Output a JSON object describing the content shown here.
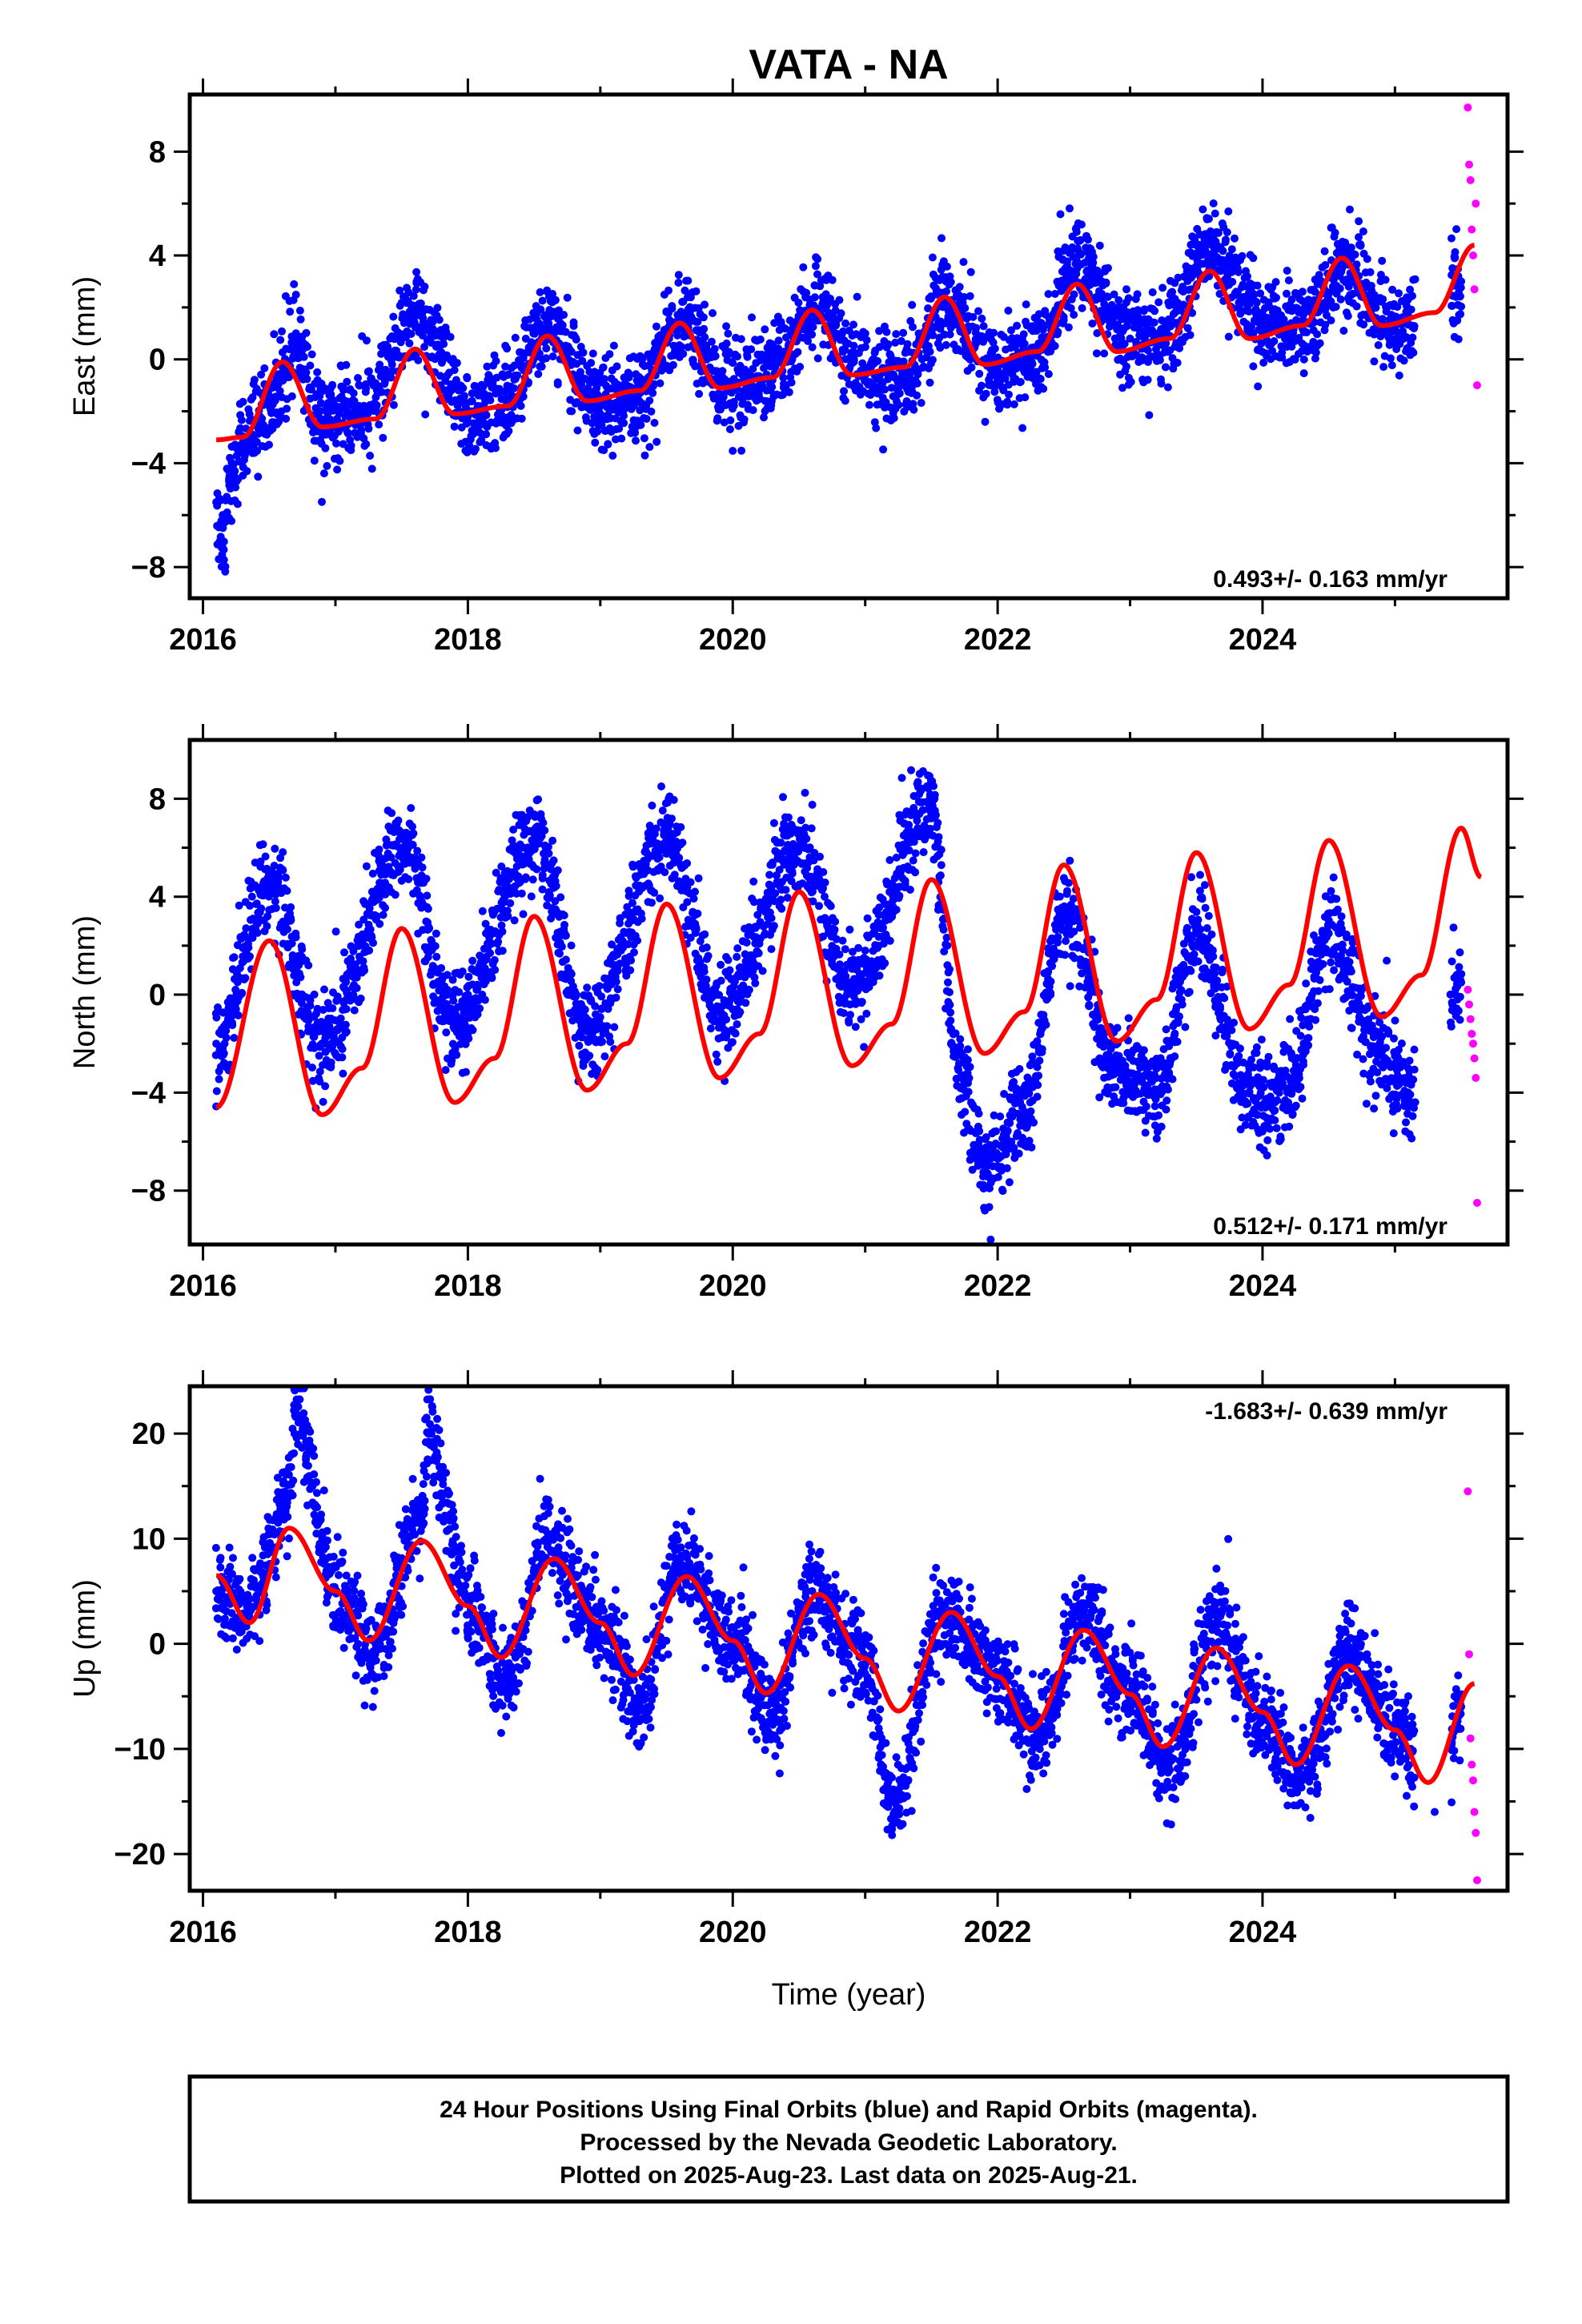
{
  "title": "VATA - NA",
  "xlabel": "Time (year)",
  "footer": {
    "line1": "24 Hour Positions Using Final Orbits (blue) and Rapid Orbits (magenta).",
    "line2": "Processed by the Nevada Geodetic Laboratory.",
    "line3": "Plotted on 2025-Aug-23. Last data on 2025-Aug-21."
  },
  "colors": {
    "final": "#0000ff",
    "rapid": "#ff00ff",
    "model": "#ff0000",
    "axis": "#000000"
  },
  "chart_data": [
    {
      "type": "scatter",
      "component": "east",
      "ylabel": "East (mm)",
      "rate": "0.493+/- 0.163 mm/yr",
      "xlim": [
        2015.9,
        2025.85
      ],
      "ylim": [
        -9.2,
        10.2
      ],
      "xticks": [
        2016,
        2018,
        2020,
        2022,
        2024
      ],
      "yticks": [
        -8,
        -4,
        0,
        4,
        8
      ],
      "x_tick_labels": [
        "2016",
        "2018",
        "2020",
        "2022",
        "2024"
      ],
      "y_tick_labels": [
        "−8",
        "−4",
        "0",
        "4",
        "8"
      ],
      "model_series": {
        "name": "",
        "x": [
          2016.1,
          2016.3,
          2016.6,
          2016.9,
          2017.3,
          2017.6,
          2017.9,
          2018.3,
          2018.6,
          2018.9,
          2019.3,
          2019.6,
          2019.9,
          2020.3,
          2020.6,
          2020.9,
          2021.3,
          2021.6,
          2021.9,
          2022.3,
          2022.6,
          2022.9,
          2023.3,
          2023.6,
          2023.9,
          2024.3,
          2024.6,
          2024.9,
          2025.3,
          2025.6
        ],
        "y": [
          -3.1,
          -3.0,
          -0.1,
          -2.6,
          -2.3,
          0.4,
          -2.1,
          -1.8,
          0.9,
          -1.6,
          -1.2,
          1.4,
          -1.1,
          -0.7,
          1.9,
          -0.6,
          -0.3,
          2.4,
          -0.2,
          0.3,
          2.9,
          0.3,
          0.8,
          3.4,
          0.8,
          1.3,
          3.9,
          1.3,
          1.8,
          4.4
        ]
      },
      "final_orbit_points": {
        "x": [
          2016.1,
          2016.15,
          2016.2,
          2016.3,
          2016.5,
          2016.7,
          2016.9,
          2017.2,
          2017.6,
          2018.0,
          2018.3,
          2018.6,
          2019.0,
          2019.3,
          2019.6,
          2020.0,
          2020.3,
          2020.6,
          2021.0,
          2021.3,
          2021.6,
          2022.0,
          2022.3,
          2022.6,
          2023.0,
          2023.3,
          2023.6,
          2024.0,
          2024.3,
          2024.6,
          2025.0,
          2025.5
        ],
        "y": [
          -5.5,
          -7.0,
          -4.5,
          -3.2,
          -1.8,
          0.5,
          -2.5,
          -2.0,
          1.8,
          -2.2,
          -1.5,
          1.2,
          -1.8,
          -1.3,
          1.5,
          -1.2,
          -0.8,
          2.0,
          -0.5,
          -0.6,
          2.2,
          -0.4,
          0.2,
          3.5,
          0.8,
          0.9,
          4.5,
          1.5,
          1.2,
          3.5,
          1.2,
          3.0
        ]
      },
      "rapid_orbit_points": {
        "x": [
          2025.55,
          2025.56,
          2025.57,
          2025.58,
          2025.59,
          2025.6,
          2025.61,
          2025.62
        ],
        "y": [
          9.7,
          7.5,
          6.9,
          5.0,
          4.0,
          2.7,
          6.0,
          -1.0
        ]
      }
    },
    {
      "type": "scatter",
      "component": "north",
      "ylabel": "North (mm)",
      "rate": "0.512+/- 0.171 mm/yr",
      "xlim": [
        2015.9,
        2025.85
      ],
      "ylim": [
        -10.2,
        10.4
      ],
      "xticks": [
        2016,
        2018,
        2020,
        2022,
        2024
      ],
      "yticks": [
        -8,
        -4,
        0,
        4,
        8
      ],
      "x_tick_labels": [
        "2016",
        "2018",
        "2020",
        "2022",
        "2024"
      ],
      "y_tick_labels": [
        "−8",
        "−4",
        "0",
        "4",
        "8"
      ],
      "model_series": {
        "name": "",
        "x": [
          2016.1,
          2016.5,
          2016.9,
          2017.2,
          2017.5,
          2017.9,
          2018.2,
          2018.5,
          2018.9,
          2019.2,
          2019.5,
          2019.9,
          2020.2,
          2020.5,
          2020.9,
          2021.2,
          2021.5,
          2021.9,
          2022.2,
          2022.5,
          2022.9,
          2023.2,
          2023.5,
          2023.9,
          2024.2,
          2024.5,
          2024.9,
          2025.2,
          2025.5,
          2025.65
        ],
        "y": [
          -4.6,
          2.2,
          -4.9,
          -3.0,
          2.7,
          -4.4,
          -2.6,
          3.2,
          -3.9,
          -2.0,
          3.7,
          -3.4,
          -1.6,
          4.2,
          -2.9,
          -1.2,
          4.7,
          -2.4,
          -0.7,
          5.3,
          -1.9,
          -0.2,
          5.8,
          -1.4,
          0.4,
          6.3,
          -0.9,
          0.8,
          6.8,
          4.8
        ]
      },
      "final_orbit_points": {
        "x": [
          2016.1,
          2016.5,
          2016.9,
          2017.5,
          2017.9,
          2018.5,
          2018.9,
          2019.5,
          2019.9,
          2020.5,
          2020.9,
          2021.5,
          2021.7,
          2021.9,
          2022.2,
          2022.5,
          2022.9,
          2023.2,
          2023.5,
          2023.9,
          2024.2,
          2024.5,
          2024.9,
          2025.1,
          2025.5
        ],
        "y": [
          -2.0,
          4.5,
          -2.0,
          6.0,
          -1.2,
          6.2,
          -1.5,
          6.3,
          -0.5,
          6.0,
          0.3,
          7.5,
          -3.0,
          -7.0,
          -5.0,
          3.5,
          -3.0,
          -4.0,
          2.5,
          -4.0,
          -4.0,
          2.5,
          -2.5,
          -4.0,
          0.5
        ]
      },
      "rapid_orbit_points": {
        "x": [
          2025.55,
          2025.56,
          2025.57,
          2025.58,
          2025.59,
          2025.6,
          2025.61,
          2025.62
        ],
        "y": [
          0.2,
          -0.4,
          -1.0,
          -1.6,
          -2.0,
          -2.6,
          -3.4,
          -8.5
        ]
      }
    },
    {
      "type": "scatter",
      "component": "up",
      "ylabel": "Up (mm)",
      "rate": "-1.683+/- 0.639 mm/yr",
      "xlim": [
        2015.9,
        2025.85
      ],
      "ylim": [
        -23.5,
        24.5
      ],
      "xticks": [
        2016,
        2018,
        2020,
        2022,
        2024
      ],
      "yticks": [
        -20,
        -10,
        0,
        10,
        20
      ],
      "x_tick_labels": [
        "2016",
        "2018",
        "2020",
        "2022",
        "2024"
      ],
      "y_tick_labels": [
        "−20",
        "−10",
        "0",
        "10",
        "20"
      ],
      "model_series": {
        "name": "",
        "x": [
          2016.1,
          2016.35,
          2016.65,
          2017.0,
          2017.25,
          2017.65,
          2018.0,
          2018.25,
          2018.65,
          2019.0,
          2019.25,
          2019.65,
          2020.0,
          2020.25,
          2020.65,
          2021.0,
          2021.25,
          2021.65,
          2022.0,
          2022.25,
          2022.65,
          2023.0,
          2023.25,
          2023.65,
          2024.0,
          2024.25,
          2024.65,
          2025.0,
          2025.25,
          2025.6
        ],
        "y": [
          6.5,
          2.0,
          11.0,
          5.0,
          0.3,
          9.8,
          3.6,
          -1.3,
          8.1,
          2.0,
          -3.0,
          6.4,
          0.3,
          -4.7,
          4.7,
          -1.4,
          -6.4,
          3.0,
          -3.1,
          -8.1,
          1.3,
          -4.8,
          -9.8,
          -0.4,
          -6.5,
          -11.5,
          -2.1,
          -8.2,
          -13.2,
          -3.8
        ]
      },
      "final_orbit_points": {
        "x": [
          2016.1,
          2016.35,
          2016.65,
          2016.7,
          2017.0,
          2017.3,
          2017.65,
          2017.7,
          2018.0,
          2018.3,
          2018.6,
          2019.0,
          2019.3,
          2019.6,
          2020.0,
          2020.3,
          2020.6,
          2021.0,
          2021.2,
          2021.6,
          2022.0,
          2022.3,
          2022.65,
          2023.0,
          2023.3,
          2023.65,
          2024.0,
          2024.3,
          2024.65,
          2025.0,
          2025.3,
          2025.5
        ],
        "y": [
          5.0,
          3.0,
          14.0,
          22.0,
          5.0,
          -1.0,
          12.0,
          20.0,
          4.0,
          -4.0,
          10.0,
          2.0,
          -6.0,
          8.0,
          0.0,
          -7.0,
          5.0,
          -2.0,
          -15.0,
          3.0,
          -3.0,
          -9.0,
          3.0,
          -5.0,
          -12.0,
          2.0,
          -7.0,
          -13.0,
          -1.0,
          -8.0,
          -16.0,
          -6.0
        ]
      },
      "rapid_orbit_points": {
        "x": [
          2025.55,
          2025.56,
          2025.57,
          2025.58,
          2025.59,
          2025.6,
          2025.61,
          2025.62
        ],
        "y": [
          14.5,
          -1.0,
          -9.0,
          -11.5,
          -13.0,
          -16.0,
          -18.0,
          -22.5
        ]
      }
    }
  ]
}
